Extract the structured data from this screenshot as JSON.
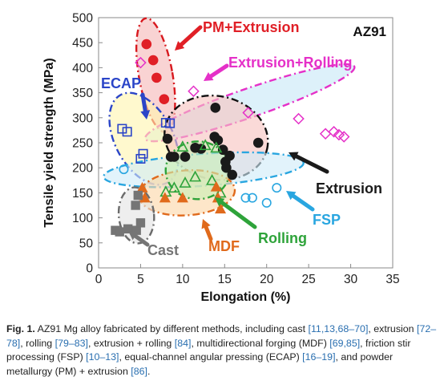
{
  "figure": {
    "chart_data": {
      "type": "scatter",
      "panel_label": "AZ91",
      "xlabel": "Elongation (%)",
      "ylabel": "Tensile yield strength (MPa)",
      "xlim": [
        0,
        35
      ],
      "ylim": [
        0,
        500
      ],
      "xticks": [
        "0",
        "5",
        "10",
        "15",
        "20",
        "25",
        "30",
        "35"
      ],
      "yticks": [
        "0",
        "50",
        "100",
        "150",
        "200",
        "250",
        "300",
        "350",
        "400",
        "450",
        "500"
      ],
      "grid": false,
      "series": [
        {
          "name": "PM+Extrusion",
          "color": "#e01f26",
          "marker": "filled-circle",
          "points": [
            [
              5.7,
              447
            ],
            [
              6.5,
              415
            ],
            [
              6.9,
              380
            ],
            [
              7.8,
              337
            ]
          ]
        },
        {
          "name": "Extrusion+Rolling",
          "color": "#e530c8",
          "marker": "open-diamond",
          "points": [
            [
              5.0,
              410
            ],
            [
              11.3,
              353
            ],
            [
              17.8,
              310
            ],
            [
              23.8,
              298
            ],
            [
              27.0,
              268
            ],
            [
              28.0,
              272
            ],
            [
              28.6,
              266
            ],
            [
              29.2,
              262
            ]
          ]
        },
        {
          "name": "ECAP",
          "color": "#2b45c8",
          "marker": "open-square",
          "points": [
            [
              2.8,
              278
            ],
            [
              3.4,
              272
            ],
            [
              5.3,
              228
            ],
            [
              5.0,
              218
            ],
            [
              8.0,
              290
            ],
            [
              8.5,
              289
            ]
          ]
        },
        {
          "name": "Extrusion",
          "color": "#1a1a1a",
          "marker": "filled-circle",
          "points": [
            [
              13.9,
              320
            ],
            [
              13.8,
              262
            ],
            [
              14.2,
              255
            ],
            [
              14.8,
              236
            ],
            [
              15.1,
              212
            ],
            [
              15.6,
              224
            ],
            [
              15.9,
              186
            ],
            [
              15.2,
              200
            ],
            [
              19.0,
              250
            ],
            [
              8.2,
              258
            ],
            [
              8.6,
              222
            ],
            [
              9.0,
              222
            ],
            [
              10.3,
              222
            ],
            [
              11.5,
              240
            ],
            [
              12.2,
              238
            ]
          ]
        },
        {
          "name": "FSP",
          "color": "#29a6e0",
          "marker": "open-circle",
          "points": [
            [
              3.0,
              197
            ],
            [
              17.5,
              140
            ],
            [
              18.3,
              140
            ],
            [
              20.0,
              130
            ],
            [
              21.2,
              160
            ]
          ]
        },
        {
          "name": "Rolling",
          "color": "#2ea33a",
          "marker": "open-triangle",
          "points": [
            [
              8.0,
              152
            ],
            [
              9.0,
              160
            ],
            [
              10.0,
              242
            ],
            [
              10.3,
              170
            ],
            [
              11.5,
              182
            ],
            [
              13.5,
              175
            ],
            [
              14.0,
              240
            ],
            [
              14.5,
              150
            ],
            [
              12.7,
              245
            ]
          ]
        },
        {
          "name": "MDF",
          "color": "#e06a1c",
          "marker": "filled-triangle",
          "points": [
            [
              5.2,
              160
            ],
            [
              5.5,
              140
            ],
            [
              7.9,
              140
            ],
            [
              10.0,
              140
            ],
            [
              14.0,
              162
            ],
            [
              14.2,
              140
            ],
            [
              14.5,
              118
            ]
          ]
        },
        {
          "name": "Cast",
          "color": "#757575",
          "marker": "filled-square",
          "points": [
            [
              2.0,
              75
            ],
            [
              2.5,
              72
            ],
            [
              3.5,
              78
            ],
            [
              4.4,
              125
            ],
            [
              4.5,
              75
            ],
            [
              5.0,
              90
            ],
            [
              4.7,
              145
            ]
          ]
        }
      ]
    }
  },
  "caption": {
    "label": "Fig. 1.",
    "text_1": " AZ91 Mg alloy fabricated by different methods, including cast ",
    "ref_1": "[11,13,68–70]",
    "text_2": ", extrusion ",
    "ref_2": "[72–78]",
    "text_3": ", rolling ",
    "ref_3": "[79–83]",
    "text_4": ", extrusion + rolling ",
    "ref_4": "[84]",
    "text_5": ", multidirectional forging (MDF) ",
    "ref_5": "[69,85]",
    "text_6": ", friction stir processing (FSP) ",
    "ref_6": "[10–13]",
    "text_7": ", equal-channel angular pressing (ECAP) ",
    "ref_7": "[16–19]",
    "text_8": ", and powder metallurgy (PM) + extrusion ",
    "ref_8": "[86]",
    "text_9": "."
  }
}
